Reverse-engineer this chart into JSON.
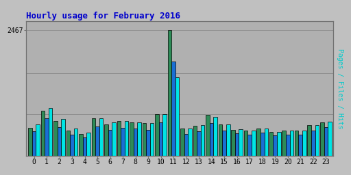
{
  "title": "Hourly usage for February 2016",
  "ylabel": "Pages / Files / Hits",
  "hours": [
    0,
    1,
    2,
    3,
    4,
    5,
    6,
    7,
    8,
    9,
    10,
    11,
    12,
    13,
    14,
    15,
    16,
    17,
    18,
    19,
    20,
    21,
    22,
    23
  ],
  "pages": [
    550,
    880,
    680,
    490,
    430,
    740,
    620,
    680,
    650,
    640,
    820,
    2467,
    530,
    590,
    800,
    610,
    510,
    490,
    540,
    470,
    490,
    490,
    600,
    660
  ],
  "files": [
    480,
    740,
    560,
    420,
    360,
    580,
    510,
    550,
    530,
    510,
    660,
    1850,
    430,
    480,
    640,
    500,
    440,
    420,
    460,
    400,
    420,
    420,
    500,
    560
  ],
  "hits": [
    620,
    940,
    720,
    540,
    450,
    740,
    660,
    680,
    660,
    640,
    820,
    1550,
    540,
    600,
    770,
    620,
    520,
    490,
    540,
    470,
    490,
    490,
    600,
    670
  ],
  "color_pages": "#2d8b57",
  "color_files": "#1a6fd4",
  "color_hits": "#00e5e5",
  "edgecolor": "#000000",
  "background_color": "#c0c0c0",
  "plot_bg_color": "#b0b0b0",
  "title_color": "#0000cc",
  "ylabel_color": "#00cccc",
  "tick_color": "#000000",
  "ytick_label": "2467",
  "ylim_max": 2650,
  "bar_width": 0.3,
  "title_fontsize": 9,
  "ylabel_fontsize": 7,
  "tick_fontsize": 7,
  "grid_color": "#909090",
  "grid_levels": [
    0.33,
    0.66,
    1.0
  ]
}
